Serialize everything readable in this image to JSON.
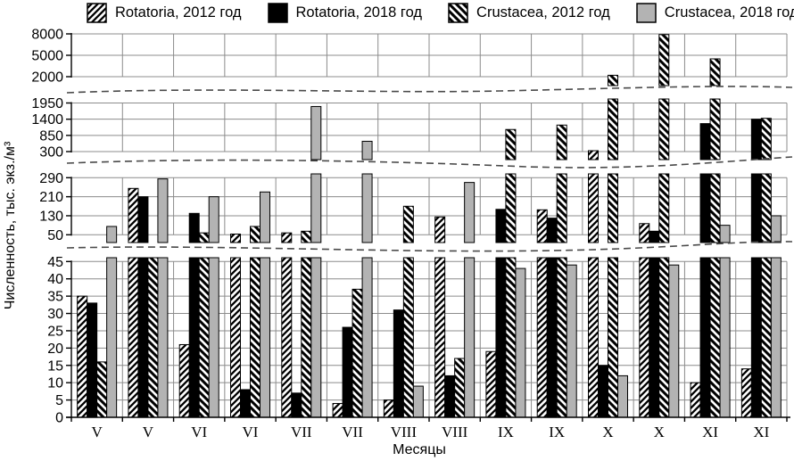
{
  "chart_data": {
    "type": "bar",
    "title": "",
    "xlabel": "Месяцы",
    "ylabel": "Численность, тыс. экз./м³",
    "categories": [
      "V",
      "V",
      "VI",
      "VI",
      "VII",
      "VII",
      "VIII",
      "VIII",
      "IX",
      "IX",
      "X",
      "X",
      "XI",
      "XI"
    ],
    "series": [
      {
        "name": "Rotatoria, 2012 год",
        "fill": "hatch-up",
        "values": [
          35,
          245,
          21,
          53,
          58,
          4,
          5,
          125,
          19,
          155,
          330,
          97,
          10,
          14
        ]
      },
      {
        "name": "Rotatoria, 2018 год",
        "fill": "black",
        "values": [
          33,
          210,
          140,
          8,
          7,
          26,
          31,
          12,
          157,
          120,
          15,
          65,
          1250,
          1400
        ]
      },
      {
        "name": "Crustacea, 2012 год",
        "fill": "hatch-down",
        "values": [
          16,
          48,
          58,
          85,
          65,
          37,
          170,
          17,
          1050,
          1200,
          2200,
          7900,
          4500,
          1430
        ]
      },
      {
        "name": "Crustacea, 2018 год",
        "fill": "gray",
        "values": [
          85,
          285,
          210,
          230,
          1830,
          650,
          9,
          270,
          43,
          44,
          12,
          44,
          90,
          130
        ]
      }
    ],
    "y_axis_panels": [
      {
        "ticks": [
          2000,
          5000,
          8000
        ],
        "range": [
          2000,
          8000
        ]
      },
      {
        "ticks": [
          300,
          850,
          1400,
          1950
        ],
        "range": [
          300,
          1950
        ]
      },
      {
        "ticks": [
          50,
          130,
          210,
          290
        ],
        "range": [
          50,
          290
        ]
      },
      {
        "ticks": [
          0,
          5,
          10,
          15,
          20,
          25,
          30,
          35,
          40,
          45
        ],
        "range": [
          0,
          45
        ]
      }
    ],
    "legend_position": "top",
    "grid": true,
    "axis_break_style": "dashed-wave",
    "colors": {
      "gray_bar": "#b3b3b3",
      "grid": "#8c8c8c",
      "axis": "#000000",
      "break_line": "#4a4a4a",
      "bar_border": "#000000"
    }
  }
}
